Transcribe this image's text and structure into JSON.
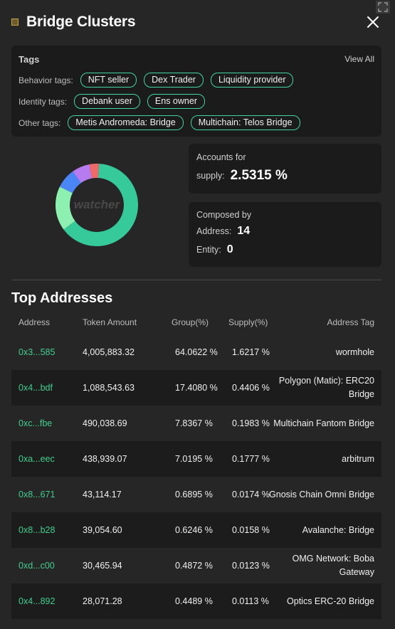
{
  "header": {
    "title": "Bridge Clusters"
  },
  "tags": {
    "title": "Tags",
    "view_all": "View All",
    "behavior": {
      "label": "Behavior tags:",
      "items": [
        "NFT seller",
        "Dex Trader",
        "Liquidity provider"
      ]
    },
    "identity": {
      "label": "Identity tags:",
      "items": [
        "Debank user",
        "Ens owner"
      ]
    },
    "other": {
      "label": "Other tags:",
      "items": [
        "Metis Andromeda: Bridge",
        "Multichain: Telos Bridge"
      ]
    }
  },
  "donut": {
    "watermark": "watcher",
    "segments": [
      {
        "value": 64.06,
        "color": "#36c999"
      },
      {
        "value": 17.41,
        "color": "#8ef0b0"
      },
      {
        "value": 7.84,
        "color": "#4a86f5"
      },
      {
        "value": 7.02,
        "color": "#b77bf0"
      },
      {
        "value": 3.67,
        "color": "#ef6b6b"
      }
    ]
  },
  "supply_card": {
    "label1": "Accounts for",
    "label2": "supply:",
    "value": "2.5315 %"
  },
  "composed_card": {
    "label": "Composed by",
    "address_label": "Address:",
    "address_value": "14",
    "entity_label": "Entity:",
    "entity_value": "0"
  },
  "table": {
    "title": "Top Addresses",
    "headers": {
      "address": "Address",
      "amount": "Token Amount",
      "group": "Group(%)",
      "supply": "Supply(%)",
      "tag": "Address Tag"
    },
    "rows": [
      {
        "address": "0x3...585",
        "amount": "4,005,883.32",
        "group": "64.0622 %",
        "supply": "1.6217 %",
        "tag": "wormhole"
      },
      {
        "address": "0x4...bdf",
        "amount": "1,088,543.63",
        "group": "17.4080 %",
        "supply": "0.4406 %",
        "tag": "Polygon (Matic): ERC20 Bridge"
      },
      {
        "address": "0xc...fbe",
        "amount": "490,038.69",
        "group": "7.8367 %",
        "supply": "0.1983 %",
        "tag": "Multichain Fantom Bridge"
      },
      {
        "address": "0xa...eec",
        "amount": "438,939.07",
        "group": "7.0195 %",
        "supply": "0.1777 %",
        "tag": "arbitrum"
      },
      {
        "address": "0x8...671",
        "amount": "43,114.17",
        "group": "0.6895 %",
        "supply": "0.0174 %",
        "tag": "Gnosis Chain Omni Bridge"
      },
      {
        "address": "0x8...b28",
        "amount": "39,054.60",
        "group": "0.6246 %",
        "supply": "0.0158 %",
        "tag": "Avalanche: Bridge"
      },
      {
        "address": "0xd...c00",
        "amount": "30,465.94",
        "group": "0.4872 %",
        "supply": "0.0123 %",
        "tag": "OMG Network: Boba Gateway"
      },
      {
        "address": "0x4...892",
        "amount": "28,071.28",
        "group": "0.4489 %",
        "supply": "0.0113 %",
        "tag": "Optics ERC-20 Bridge"
      }
    ]
  }
}
